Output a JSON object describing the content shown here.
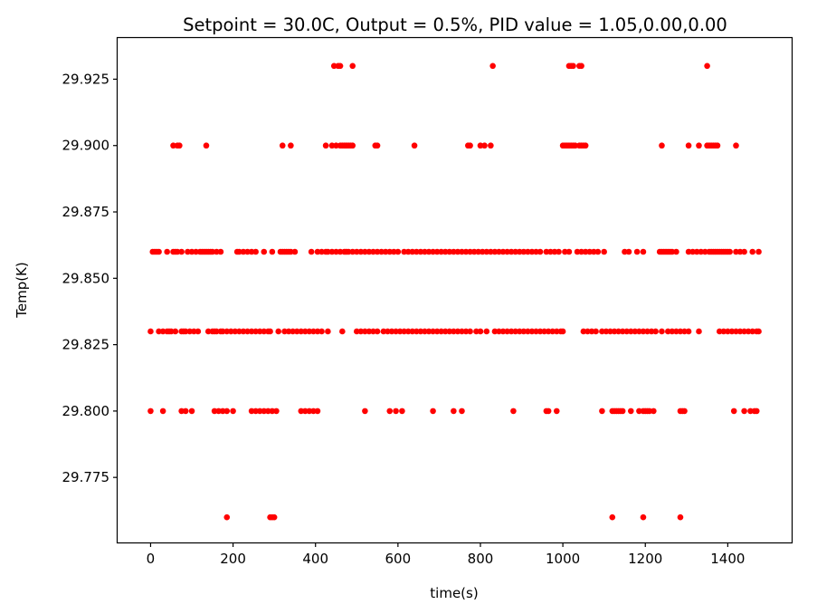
{
  "chart_data": {
    "type": "scatter",
    "title": "Setpoint = 30.0C, Output = 0.5%, PID value = 1.05,0.00,0.00",
    "xlabel": "time(s)",
    "ylabel": "Temp(K)",
    "xlim": [
      -80,
      1555
    ],
    "ylim": [
      29.7505,
      29.9405
    ],
    "xticks": [
      0,
      200,
      400,
      600,
      800,
      1000,
      1200,
      1400
    ],
    "xtick_labels": [
      "0",
      "200",
      "400",
      "600",
      "800",
      "1000",
      "1200",
      "1400"
    ],
    "yticks": [
      29.775,
      29.8,
      29.825,
      29.85,
      29.875,
      29.9,
      29.925
    ],
    "ytick_labels": [
      "29.775",
      "29.800",
      "29.825",
      "29.850",
      "29.875",
      "29.900",
      "29.925"
    ],
    "grid": false,
    "marker_color": "#ff0000",
    "series": [
      {
        "levels": [
          {
            "y": 29.93,
            "x": [
              445,
              455,
              460,
              490,
              830,
              1015,
              1020,
              1025,
              1040,
              1045,
              1350
            ]
          },
          {
            "y": 29.9,
            "x": [
              55,
              65,
              70,
              135,
              320,
              340,
              425,
              440,
              450,
              460,
              465,
              470,
              475,
              480,
              485,
              490,
              545,
              550,
              640,
              770,
              775,
              800,
              810,
              825,
              1000,
              1005,
              1010,
              1015,
              1020,
              1025,
              1030,
              1040,
              1045,
              1050,
              1055,
              1240,
              1305,
              1330,
              1350,
              1355,
              1360,
              1365,
              1370,
              1375,
              1420
            ]
          },
          {
            "y": 29.86,
            "x": [
              5,
              10,
              15,
              20,
              40,
              55,
              60,
              65,
              75,
              90,
              100,
              110,
              120,
              125,
              130,
              135,
              140,
              145,
              150,
              160,
              170,
              210,
              215,
              225,
              235,
              245,
              255,
              275,
              295,
              315,
              320,
              325,
              330,
              335,
              340,
              350,
              390,
              405,
              415,
              425,
              430,
              440,
              450,
              460,
              470,
              475,
              480,
              490,
              500,
              510,
              520,
              530,
              540,
              550,
              560,
              570,
              580,
              590,
              600,
              615,
              625,
              635,
              645,
              655,
              665,
              675,
              685,
              695,
              705,
              715,
              725,
              735,
              745,
              755,
              765,
              775,
              785,
              795,
              805,
              815,
              825,
              835,
              845,
              855,
              865,
              875,
              885,
              895,
              905,
              915,
              925,
              935,
              945,
              960,
              970,
              980,
              990,
              1005,
              1015,
              1035,
              1045,
              1055,
              1065,
              1075,
              1085,
              1100,
              1150,
              1160,
              1180,
              1195,
              1235,
              1240,
              1245,
              1250,
              1255,
              1260,
              1265,
              1275,
              1305,
              1315,
              1325,
              1335,
              1345,
              1355,
              1360,
              1365,
              1370,
              1375,
              1380,
              1385,
              1390,
              1395,
              1400,
              1405,
              1420,
              1430,
              1440,
              1460,
              1475
            ]
          },
          {
            "y": 29.83,
            "x": [
              0,
              20,
              30,
              40,
              45,
              50,
              60,
              75,
              80,
              85,
              95,
              105,
              115,
              140,
              150,
              155,
              160,
              170,
              175,
              185,
              195,
              205,
              215,
              225,
              235,
              245,
              255,
              265,
              275,
              285,
              290,
              310,
              325,
              335,
              345,
              355,
              365,
              375,
              385,
              395,
              405,
              415,
              430,
              465,
              500,
              510,
              520,
              530,
              540,
              550,
              565,
              575,
              585,
              595,
              605,
              615,
              625,
              635,
              645,
              655,
              665,
              675,
              685,
              695,
              705,
              715,
              725,
              735,
              745,
              755,
              765,
              775,
              790,
              800,
              815,
              835,
              845,
              855,
              865,
              875,
              885,
              895,
              905,
              915,
              925,
              935,
              945,
              955,
              965,
              975,
              985,
              995,
              1000,
              1050,
              1060,
              1070,
              1080,
              1095,
              1105,
              1115,
              1125,
              1135,
              1145,
              1155,
              1165,
              1175,
              1185,
              1195,
              1205,
              1215,
              1225,
              1240,
              1255,
              1265,
              1275,
              1285,
              1295,
              1305,
              1330,
              1380,
              1390,
              1400,
              1410,
              1420,
              1430,
              1440,
              1450,
              1460,
              1470,
              1475
            ]
          },
          {
            "y": 29.8,
            "x": [
              0,
              30,
              75,
              85,
              100,
              155,
              165,
              175,
              185,
              200,
              245,
              255,
              265,
              275,
              285,
              295,
              305,
              365,
              375,
              385,
              395,
              405,
              520,
              580,
              595,
              610,
              685,
              735,
              755,
              880,
              960,
              965,
              985,
              1095,
              1120,
              1125,
              1130,
              1135,
              1140,
              1145,
              1165,
              1185,
              1195,
              1200,
              1205,
              1210,
              1220,
              1285,
              1290,
              1295,
              1415,
              1440,
              1455,
              1465,
              1470
            ]
          },
          {
            "y": 29.76,
            "x": [
              185,
              290,
              295,
              300,
              1120,
              1195,
              1285
            ]
          }
        ]
      }
    ]
  }
}
